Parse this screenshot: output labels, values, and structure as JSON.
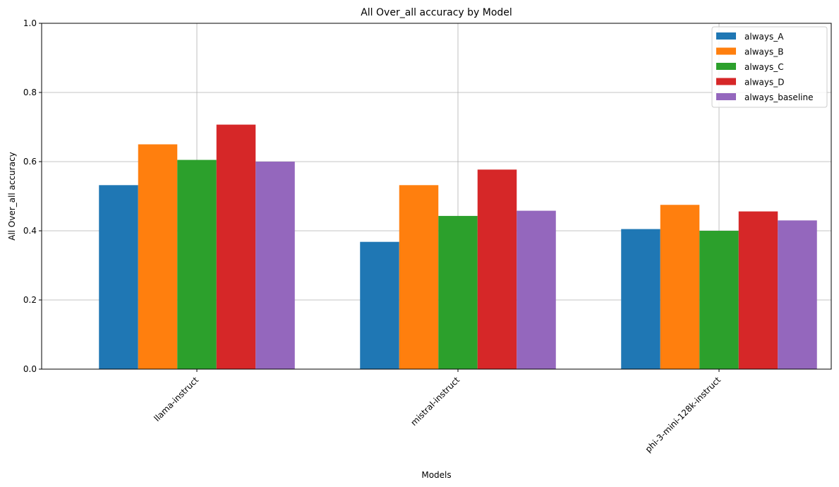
{
  "chart_data": {
    "type": "bar",
    "title": "All Over_all accuracy by Model",
    "xlabel": "Models",
    "ylabel": "All Over_all accuracy",
    "ylim": [
      0,
      1
    ],
    "yticks": [
      "0.0",
      "0.2",
      "0.4",
      "0.6",
      "0.8",
      "1.0"
    ],
    "categories": [
      "llama-instruct",
      "mistral-instruct",
      "phi-3-mini-128k-instruct"
    ],
    "series": [
      {
        "name": "always_A",
        "color": "#1f77b4",
        "values": [
          0.532,
          0.368,
          0.405
        ]
      },
      {
        "name": "always_B",
        "color": "#ff7f0e",
        "values": [
          0.65,
          0.532,
          0.475
        ]
      },
      {
        "name": "always_C",
        "color": "#2ca02c",
        "values": [
          0.605,
          0.443,
          0.4
        ]
      },
      {
        "name": "always_D",
        "color": "#d62728",
        "values": [
          0.707,
          0.577,
          0.456
        ]
      },
      {
        "name": "always_baseline",
        "color": "#9467bd",
        "values": [
          0.6,
          0.458,
          0.43
        ]
      }
    ],
    "grid": true,
    "legend_position": "top-right"
  }
}
